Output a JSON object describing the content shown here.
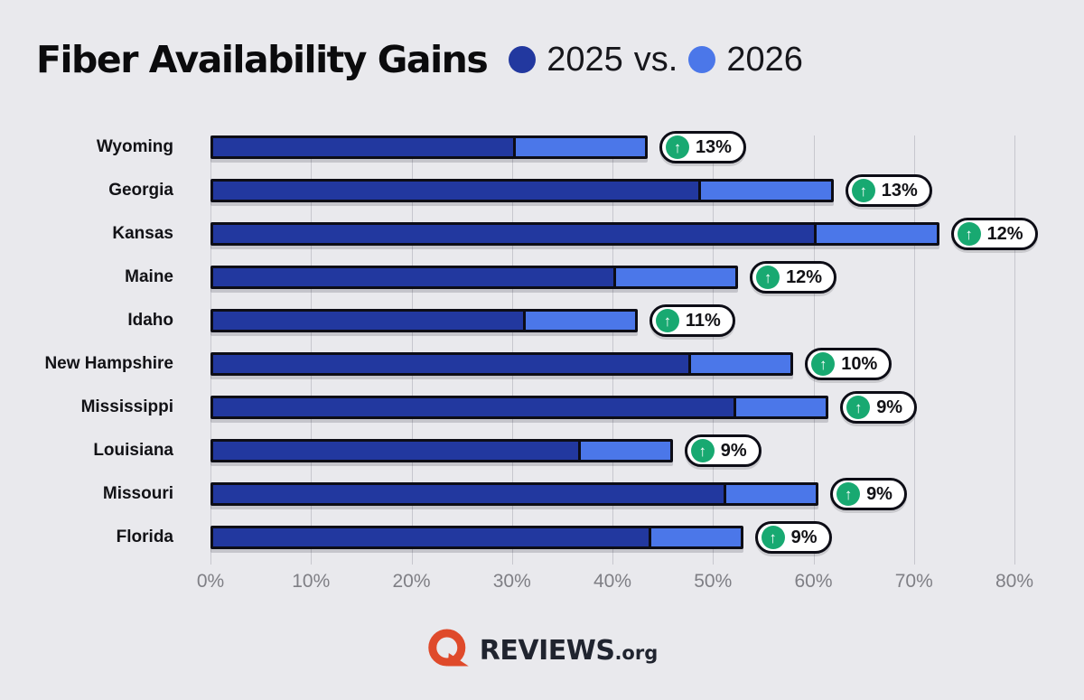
{
  "title": "Fiber Availability Gains",
  "legend": {
    "series1_label": "2025",
    "separator": "vs.",
    "series2_label": "2026"
  },
  "chart_data": {
    "type": "bar",
    "orientation": "horizontal",
    "title": "Fiber Availability Gains",
    "legend_position": "top",
    "grid": true,
    "xlabel": "",
    "ylabel": "",
    "xlim": [
      0,
      80
    ],
    "x_ticks": [
      "0%",
      "10%",
      "20%",
      "30%",
      "40%",
      "50%",
      "60%",
      "70%",
      "80%"
    ],
    "categories": [
      "Wyoming",
      "Georgia",
      "Kansas",
      "Maine",
      "Idaho",
      "New Hampshire",
      "Mississippi",
      "Louisiana",
      "Missouri",
      "Florida"
    ],
    "series": [
      {
        "name": "2025",
        "color": "#22389F",
        "values": [
          30.5,
          49,
          60.5,
          40.5,
          31.5,
          48,
          52.5,
          37,
          51.5,
          44
        ]
      },
      {
        "name": "2026",
        "color": "#4B77E9",
        "values": [
          43.5,
          62,
          72.5,
          52.5,
          42.5,
          58,
          61.5,
          46,
          60.5,
          53
        ]
      }
    ],
    "gain_labels": [
      "13%",
      "13%",
      "12%",
      "12%",
      "11%",
      "10%",
      "9%",
      "9%",
      "9%",
      "9%"
    ]
  },
  "icons": {
    "up_arrow": "↑"
  },
  "footer": {
    "brand": "REVIEWS",
    "brand_suffix": ".org"
  },
  "colors": {
    "background": "#E9E9ED",
    "bar_2025": "#22389F",
    "bar_2026": "#4B77E9",
    "bar_border": "#0D0D16",
    "gridline": "#C7C7CE",
    "axis_text": "#7F7F85",
    "badge_green": "#18A971",
    "logo_orange": "#DF4A2B",
    "logo_text": "#20242F"
  }
}
